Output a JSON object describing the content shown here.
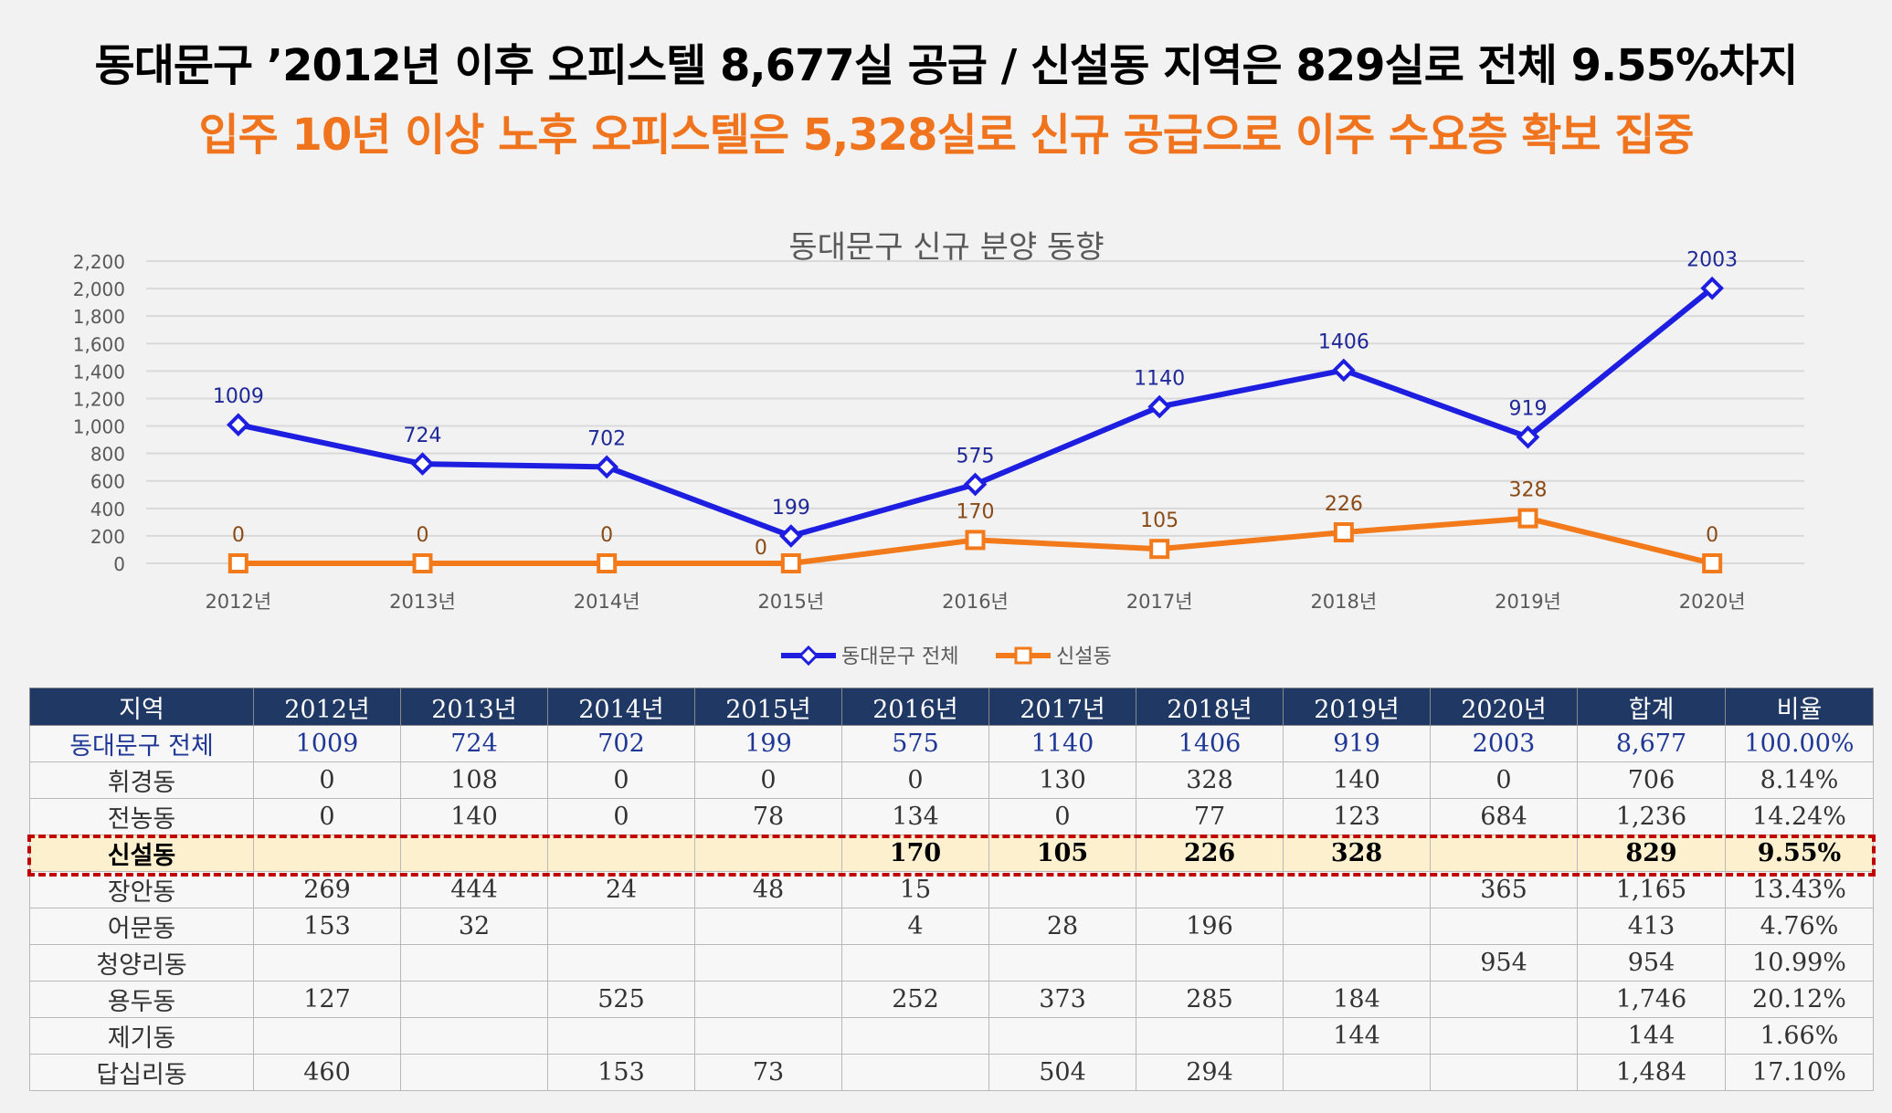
{
  "headline": {
    "line1": "동대문구 ’2012년 이후 오피스텔 8,677실 공급 / 신설동 지역은 829실로 전체 9.55%차지",
    "line2": "입주 10년 이상 노후 오피스텔은 5,328실로 신규 공급으로 이주 수요층 확보 집중"
  },
  "colors": {
    "series1": "#1e1ee0",
    "series2": "#f27a1a",
    "header": "#1f3864",
    "highlight": "#fdf0cf",
    "highlight_border": "#c00000"
  },
  "chart_data": {
    "type": "line",
    "title": "동대문구 신규 분양 동향",
    "categories": [
      "2012년",
      "2013년",
      "2014년",
      "2015년",
      "2016년",
      "2017년",
      "2018년",
      "2019년",
      "2020년"
    ],
    "series": [
      {
        "name": "동대문구 전체",
        "values": [
          1009,
          724,
          702,
          199,
          575,
          1140,
          1406,
          919,
          2003
        ]
      },
      {
        "name": "신설동",
        "values": [
          0,
          0,
          0,
          0,
          170,
          105,
          226,
          328,
          0
        ]
      }
    ],
    "ylim": [
      0,
      2200
    ],
    "yticks": [
      "0",
      "200",
      "400",
      "600",
      "800",
      "1,000",
      "1,200",
      "1,400",
      "1,600",
      "1,800",
      "2,000",
      "2,200"
    ],
    "xlabel": "",
    "ylabel": "",
    "legend": "bottom"
  },
  "table": {
    "headers": [
      "지역",
      "2012년",
      "2013년",
      "2014년",
      "2015년",
      "2016년",
      "2017년",
      "2018년",
      "2019년",
      "2020년",
      "합계",
      "비율"
    ],
    "rows": [
      [
        "동대문구 전체",
        "1009",
        "724",
        "702",
        "199",
        "575",
        "1140",
        "1406",
        "919",
        "2003",
        "8,677",
        "100.00%"
      ],
      [
        "휘경동",
        "0",
        "108",
        "0",
        "0",
        "0",
        "130",
        "328",
        "140",
        "0",
        "706",
        "8.14%"
      ],
      [
        "전농동",
        "0",
        "140",
        "0",
        "78",
        "134",
        "0",
        "77",
        "123",
        "684",
        "1,236",
        "14.24%"
      ],
      [
        "신설동",
        "",
        "",
        "",
        "",
        "170",
        "105",
        "226",
        "328",
        "",
        "829",
        "9.55%"
      ],
      [
        "장안동",
        "269",
        "444",
        "24",
        "48",
        "15",
        "",
        "",
        "",
        "365",
        "1,165",
        "13.43%"
      ],
      [
        "어문동",
        "153",
        "32",
        "",
        "",
        "4",
        "28",
        "196",
        "",
        "",
        "413",
        "4.76%"
      ],
      [
        "청양리동",
        "",
        "",
        "",
        "",
        "",
        "",
        "",
        "",
        "954",
        "954",
        "10.99%"
      ],
      [
        "용두동",
        "127",
        "",
        "525",
        "",
        "252",
        "373",
        "285",
        "184",
        "",
        "1,746",
        "20.12%"
      ],
      [
        "제기동",
        "",
        "",
        "",
        "",
        "",
        "",
        "",
        "144",
        "",
        "144",
        "1.66%"
      ],
      [
        "답십리동",
        "460",
        "",
        "153",
        "73",
        "",
        "504",
        "294",
        "",
        "",
        "1,484",
        "17.10%"
      ]
    ]
  }
}
